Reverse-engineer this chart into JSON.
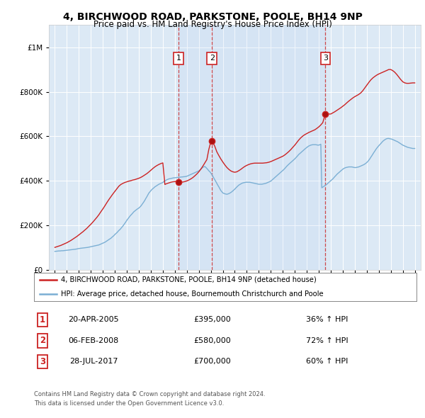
{
  "title1": "4, BIRCHWOOD ROAD, PARKSTONE, POOLE, BH14 9NP",
  "title2": "Price paid vs. HM Land Registry's House Price Index (HPI)",
  "legend_line1": "4, BIRCHWOOD ROAD, PARKSTONE, POOLE, BH14 9NP (detached house)",
  "legend_line2": "HPI: Average price, detached house, Bournemouth Christchurch and Poole",
  "footer1": "Contains HM Land Registry data © Crown copyright and database right 2024.",
  "footer2": "This data is licensed under the Open Government Licence v3.0.",
  "purchases": [
    {
      "num": 1,
      "date": "20-APR-2005",
      "price": 395000,
      "price_str": "£395,000",
      "pct": "36% ↑ HPI",
      "year": 2005.3
    },
    {
      "num": 2,
      "date": "06-FEB-2008",
      "price": 580000,
      "price_str": "£580,000",
      "pct": "72% ↑ HPI",
      "year": 2008.1
    },
    {
      "num": 3,
      "date": "28-JUL-2017",
      "price": 700000,
      "price_str": "£700,000",
      "pct": "60% ↑ HPI",
      "year": 2017.55
    }
  ],
  "hpi_color": "#7bafd4",
  "paid_color": "#cc2222",
  "bg_color": "#dce9f5",
  "fig_color": "#ffffff",
  "ylim": [
    0,
    1100000
  ],
  "yticks": [
    0,
    200000,
    400000,
    600000,
    800000,
    1000000
  ],
  "xlim_start": 1994.5,
  "xlim_end": 2025.5,
  "hpi_x": [
    1995.0,
    1995.08,
    1995.17,
    1995.25,
    1995.33,
    1995.42,
    1995.5,
    1995.58,
    1995.67,
    1995.75,
    1995.83,
    1995.92,
    1996.0,
    1996.08,
    1996.17,
    1996.25,
    1996.33,
    1996.42,
    1996.5,
    1996.58,
    1996.67,
    1996.75,
    1996.83,
    1996.92,
    1997.0,
    1997.08,
    1997.17,
    1997.25,
    1997.33,
    1997.42,
    1997.5,
    1997.58,
    1997.67,
    1997.75,
    1997.83,
    1997.92,
    1998.0,
    1998.08,
    1998.17,
    1998.25,
    1998.33,
    1998.42,
    1998.5,
    1998.58,
    1998.67,
    1998.75,
    1998.83,
    1998.92,
    1999.0,
    1999.08,
    1999.17,
    1999.25,
    1999.33,
    1999.42,
    1999.5,
    1999.58,
    1999.67,
    1999.75,
    1999.83,
    1999.92,
    2000.0,
    2000.08,
    2000.17,
    2000.25,
    2000.33,
    2000.42,
    2000.5,
    2000.58,
    2000.67,
    2000.75,
    2000.83,
    2000.92,
    2001.0,
    2001.08,
    2001.17,
    2001.25,
    2001.33,
    2001.42,
    2001.5,
    2001.58,
    2001.67,
    2001.75,
    2001.83,
    2001.92,
    2002.0,
    2002.08,
    2002.17,
    2002.25,
    2002.33,
    2002.42,
    2002.5,
    2002.58,
    2002.67,
    2002.75,
    2002.83,
    2002.92,
    2003.0,
    2003.08,
    2003.17,
    2003.25,
    2003.33,
    2003.42,
    2003.5,
    2003.58,
    2003.67,
    2003.75,
    2003.83,
    2003.92,
    2004.0,
    2004.08,
    2004.17,
    2004.25,
    2004.33,
    2004.42,
    2004.5,
    2004.58,
    2004.67,
    2004.75,
    2004.83,
    2004.92,
    2005.0,
    2005.08,
    2005.17,
    2005.25,
    2005.33,
    2005.42,
    2005.5,
    2005.58,
    2005.67,
    2005.75,
    2005.83,
    2005.92,
    2006.0,
    2006.08,
    2006.17,
    2006.25,
    2006.33,
    2006.42,
    2006.5,
    2006.58,
    2006.67,
    2006.75,
    2006.83,
    2006.92,
    2007.0,
    2007.08,
    2007.17,
    2007.25,
    2007.33,
    2007.42,
    2007.5,
    2007.58,
    2007.67,
    2007.75,
    2007.83,
    2007.92,
    2008.0,
    2008.08,
    2008.17,
    2008.25,
    2008.33,
    2008.42,
    2008.5,
    2008.58,
    2008.67,
    2008.75,
    2008.83,
    2008.92,
    2009.0,
    2009.08,
    2009.17,
    2009.25,
    2009.33,
    2009.42,
    2009.5,
    2009.58,
    2009.67,
    2009.75,
    2009.83,
    2009.92,
    2010.0,
    2010.08,
    2010.17,
    2010.25,
    2010.33,
    2010.42,
    2010.5,
    2010.58,
    2010.67,
    2010.75,
    2010.83,
    2010.92,
    2011.0,
    2011.08,
    2011.17,
    2011.25,
    2011.33,
    2011.42,
    2011.5,
    2011.58,
    2011.67,
    2011.75,
    2011.83,
    2011.92,
    2012.0,
    2012.08,
    2012.17,
    2012.25,
    2012.33,
    2012.42,
    2012.5,
    2012.58,
    2012.67,
    2012.75,
    2012.83,
    2012.92,
    2013.0,
    2013.08,
    2013.17,
    2013.25,
    2013.33,
    2013.42,
    2013.5,
    2013.58,
    2013.67,
    2013.75,
    2013.83,
    2013.92,
    2014.0,
    2014.08,
    2014.17,
    2014.25,
    2014.33,
    2014.42,
    2014.5,
    2014.58,
    2014.67,
    2014.75,
    2014.83,
    2014.92,
    2015.0,
    2015.08,
    2015.17,
    2015.25,
    2015.33,
    2015.42,
    2015.5,
    2015.58,
    2015.67,
    2015.75,
    2015.83,
    2015.92,
    2016.0,
    2016.08,
    2016.17,
    2016.25,
    2016.33,
    2016.42,
    2016.5,
    2016.58,
    2016.67,
    2016.75,
    2016.83,
    2016.92,
    2017.0,
    2017.08,
    2017.17,
    2017.25,
    2017.33,
    2017.42,
    2017.5,
    2017.58,
    2017.67,
    2017.75,
    2017.83,
    2017.92,
    2018.0,
    2018.08,
    2018.17,
    2018.25,
    2018.33,
    2018.42,
    2018.5,
    2018.58,
    2018.67,
    2018.75,
    2018.83,
    2018.92,
    2019.0,
    2019.08,
    2019.17,
    2019.25,
    2019.33,
    2019.42,
    2019.5,
    2019.58,
    2019.67,
    2019.75,
    2019.83,
    2019.92,
    2020.0,
    2020.08,
    2020.17,
    2020.25,
    2020.33,
    2020.42,
    2020.5,
    2020.58,
    2020.67,
    2020.75,
    2020.83,
    2020.92,
    2021.0,
    2021.08,
    2021.17,
    2021.25,
    2021.33,
    2021.42,
    2021.5,
    2021.58,
    2021.67,
    2021.75,
    2021.83,
    2021.92,
    2022.0,
    2022.08,
    2022.17,
    2022.25,
    2022.33,
    2022.42,
    2022.5,
    2022.58,
    2022.67,
    2022.75,
    2022.83,
    2022.92,
    2023.0,
    2023.08,
    2023.17,
    2023.25,
    2023.33,
    2023.42,
    2023.5,
    2023.58,
    2023.67,
    2023.75,
    2023.83,
    2023.92,
    2024.0,
    2024.08,
    2024.17,
    2024.25,
    2024.33,
    2024.42,
    2024.5,
    2024.58,
    2024.67,
    2024.75,
    2024.83,
    2024.92,
    2025.0
  ],
  "hpi_y": [
    82000,
    82500,
    83000,
    83500,
    84000,
    84000,
    84500,
    85000,
    85000,
    85500,
    86000,
    86500,
    87000,
    87500,
    88000,
    88500,
    89000,
    89500,
    90000,
    90500,
    91000,
    92000,
    93000,
    94000,
    95000,
    95500,
    96000,
    96500,
    97000,
    97500,
    98000,
    98500,
    99000,
    100000,
    101000,
    102000,
    103000,
    104000,
    105000,
    106000,
    107000,
    108000,
    109000,
    110000,
    111000,
    113000,
    115000,
    117000,
    119000,
    121000,
    123000,
    126000,
    129000,
    132000,
    135000,
    138000,
    141000,
    145000,
    149000,
    153000,
    158000,
    162000,
    166000,
    171000,
    176000,
    180000,
    185000,
    190000,
    196000,
    202000,
    208000,
    215000,
    222000,
    228000,
    234000,
    240000,
    245000,
    250000,
    255000,
    260000,
    264000,
    268000,
    271000,
    274000,
    277000,
    281000,
    286000,
    292000,
    298000,
    305000,
    312000,
    320000,
    328000,
    336000,
    344000,
    350000,
    355000,
    360000,
    364000,
    368000,
    372000,
    375000,
    378000,
    381000,
    384000,
    386000,
    388000,
    390000,
    392000,
    396000,
    399000,
    402000,
    404000,
    406000,
    408000,
    409000,
    410000,
    411000,
    412000,
    413000,
    413000,
    414000,
    414000,
    415000,
    415000,
    416000,
    416000,
    417000,
    417000,
    418000,
    418000,
    419000,
    420000,
    422000,
    424000,
    426000,
    428000,
    430000,
    432000,
    434000,
    436000,
    438000,
    440000,
    442000,
    444000,
    448000,
    452000,
    456000,
    460000,
    462000,
    464000,
    460000,
    455000,
    450000,
    445000,
    440000,
    435000,
    428000,
    420000,
    412000,
    404000,
    396000,
    388000,
    380000,
    372000,
    364000,
    356000,
    350000,
    345000,
    343000,
    341000,
    340000,
    339000,
    340000,
    342000,
    344000,
    347000,
    350000,
    354000,
    358000,
    362000,
    367000,
    372000,
    376000,
    380000,
    383000,
    386000,
    388000,
    390000,
    391000,
    392000,
    393000,
    393000,
    393000,
    393000,
    393000,
    392000,
    391000,
    390000,
    389000,
    388000,
    387000,
    386000,
    385000,
    384000,
    384000,
    384000,
    384000,
    385000,
    386000,
    387000,
    388000,
    390000,
    392000,
    394000,
    396000,
    398000,
    402000,
    406000,
    410000,
    414000,
    418000,
    422000,
    426000,
    430000,
    434000,
    438000,
    442000,
    446000,
    450000,
    455000,
    460000,
    465000,
    470000,
    474000,
    478000,
    482000,
    486000,
    490000,
    494000,
    498000,
    503000,
    508000,
    513000,
    518000,
    522000,
    526000,
    530000,
    534000,
    538000,
    542000,
    546000,
    550000,
    553000,
    556000,
    558000,
    560000,
    561000,
    562000,
    562000,
    562000,
    562000,
    561000,
    560000,
    560000,
    562000,
    564000,
    368000,
    371000,
    374000,
    377000,
    380000,
    384000,
    388000,
    392000,
    396000,
    400000,
    404000,
    408000,
    413000,
    418000,
    423000,
    428000,
    432000,
    436000,
    440000,
    444000,
    448000,
    452000,
    455000,
    457000,
    459000,
    460000,
    461000,
    462000,
    462000,
    462000,
    462000,
    461000,
    460000,
    459000,
    459000,
    460000,
    461000,
    462000,
    464000,
    466000,
    468000,
    470000,
    472000,
    475000,
    478000,
    482000,
    486000,
    492000,
    498000,
    505000,
    512000,
    519000,
    526000,
    533000,
    540000,
    546000,
    552000,
    557000,
    562000,
    567000,
    572000,
    577000,
    581000,
    584000,
    587000,
    589000,
    590000,
    590000,
    589000,
    588000,
    587000,
    585000,
    583000,
    581000,
    579000,
    577000,
    575000,
    572000,
    569000,
    566000,
    563000,
    560000,
    558000,
    556000,
    554000,
    552000,
    550000,
    549000,
    548000,
    547000,
    546000,
    545000,
    545000,
    545000
  ],
  "paid_x": [
    1995.0,
    1995.17,
    1995.33,
    1995.5,
    1995.67,
    1995.83,
    1996.0,
    1996.17,
    1996.33,
    1996.5,
    1996.67,
    1996.83,
    1997.0,
    1997.17,
    1997.33,
    1997.5,
    1997.67,
    1997.83,
    1998.0,
    1998.17,
    1998.33,
    1998.5,
    1998.67,
    1998.83,
    1999.0,
    1999.17,
    1999.33,
    1999.5,
    1999.67,
    1999.83,
    2000.0,
    2000.17,
    2000.33,
    2000.5,
    2000.67,
    2000.83,
    2001.0,
    2001.17,
    2001.33,
    2001.5,
    2001.67,
    2001.83,
    2002.0,
    2002.17,
    2002.33,
    2002.5,
    2002.67,
    2002.83,
    2003.0,
    2003.17,
    2003.33,
    2003.5,
    2003.67,
    2003.83,
    2004.0,
    2004.17,
    2004.33,
    2004.5,
    2004.67,
    2004.83,
    2005.0,
    2005.17,
    2005.3,
    2005.5,
    2005.67,
    2005.83,
    2006.0,
    2006.17,
    2006.33,
    2006.5,
    2006.67,
    2006.83,
    2007.0,
    2007.17,
    2007.33,
    2007.5,
    2007.67,
    2007.83,
    2008.0,
    2008.1,
    2008.33,
    2008.5,
    2008.67,
    2008.83,
    2009.0,
    2009.17,
    2009.33,
    2009.5,
    2009.67,
    2009.83,
    2010.0,
    2010.17,
    2010.33,
    2010.5,
    2010.67,
    2010.83,
    2011.0,
    2011.17,
    2011.33,
    2011.5,
    2011.67,
    2011.83,
    2012.0,
    2012.17,
    2012.33,
    2012.5,
    2012.67,
    2012.83,
    2013.0,
    2013.17,
    2013.33,
    2013.5,
    2013.67,
    2013.83,
    2014.0,
    2014.17,
    2014.33,
    2014.5,
    2014.67,
    2014.83,
    2015.0,
    2015.17,
    2015.33,
    2015.5,
    2015.67,
    2015.83,
    2016.0,
    2016.17,
    2016.33,
    2016.5,
    2016.67,
    2016.83,
    2017.0,
    2017.17,
    2017.33,
    2017.55,
    2017.67,
    2017.83,
    2018.0,
    2018.17,
    2018.33,
    2018.5,
    2018.67,
    2018.83,
    2019.0,
    2019.17,
    2019.33,
    2019.5,
    2019.67,
    2019.83,
    2020.0,
    2020.17,
    2020.33,
    2020.5,
    2020.67,
    2020.83,
    2021.0,
    2021.17,
    2021.33,
    2021.5,
    2021.67,
    2021.83,
    2022.0,
    2022.17,
    2022.33,
    2022.5,
    2022.67,
    2022.83,
    2023.0,
    2023.17,
    2023.33,
    2023.5,
    2023.67,
    2023.83,
    2024.0,
    2024.17,
    2024.33,
    2024.5,
    2024.67,
    2024.83,
    2025.0
  ],
  "paid_y": [
    100000,
    103000,
    106000,
    109000,
    113000,
    117000,
    121000,
    126000,
    131000,
    137000,
    143000,
    149000,
    156000,
    163000,
    170000,
    178000,
    186000,
    195000,
    204000,
    214000,
    224000,
    235000,
    247000,
    260000,
    273000,
    287000,
    301000,
    315000,
    328000,
    340000,
    352000,
    364000,
    375000,
    383000,
    388000,
    392000,
    395000,
    398000,
    400000,
    403000,
    405000,
    408000,
    411000,
    415000,
    420000,
    426000,
    432000,
    439000,
    447000,
    455000,
    462000,
    468000,
    473000,
    477000,
    480000,
    383000,
    387000,
    390000,
    393000,
    395000,
    396000,
    397000,
    395000,
    393000,
    394000,
    396000,
    399000,
    403000,
    408000,
    414000,
    422000,
    430000,
    440000,
    452000,
    465000,
    480000,
    495000,
    540000,
    575000,
    580000,
    555000,
    530000,
    513000,
    498000,
    484000,
    471000,
    460000,
    451000,
    444000,
    440000,
    438000,
    440000,
    445000,
    451000,
    458000,
    464000,
    469000,
    473000,
    476000,
    478000,
    479000,
    479000,
    479000,
    479000,
    479000,
    480000,
    481000,
    483000,
    486000,
    490000,
    494000,
    498000,
    502000,
    506000,
    510000,
    516000,
    523000,
    531000,
    540000,
    550000,
    560000,
    572000,
    583000,
    593000,
    601000,
    607000,
    612000,
    617000,
    621000,
    625000,
    629000,
    635000,
    642000,
    651000,
    661000,
    700000,
    700000,
    700000,
    700000,
    705000,
    710000,
    716000,
    722000,
    728000,
    735000,
    742000,
    750000,
    758000,
    765000,
    772000,
    778000,
    783000,
    788000,
    795000,
    805000,
    817000,
    830000,
    842000,
    853000,
    862000,
    869000,
    875000,
    880000,
    884000,
    888000,
    892000,
    896000,
    900000,
    900000,
    895000,
    888000,
    878000,
    866000,
    855000,
    845000,
    840000,
    838000,
    838000,
    839000,
    840000,
    840000
  ]
}
